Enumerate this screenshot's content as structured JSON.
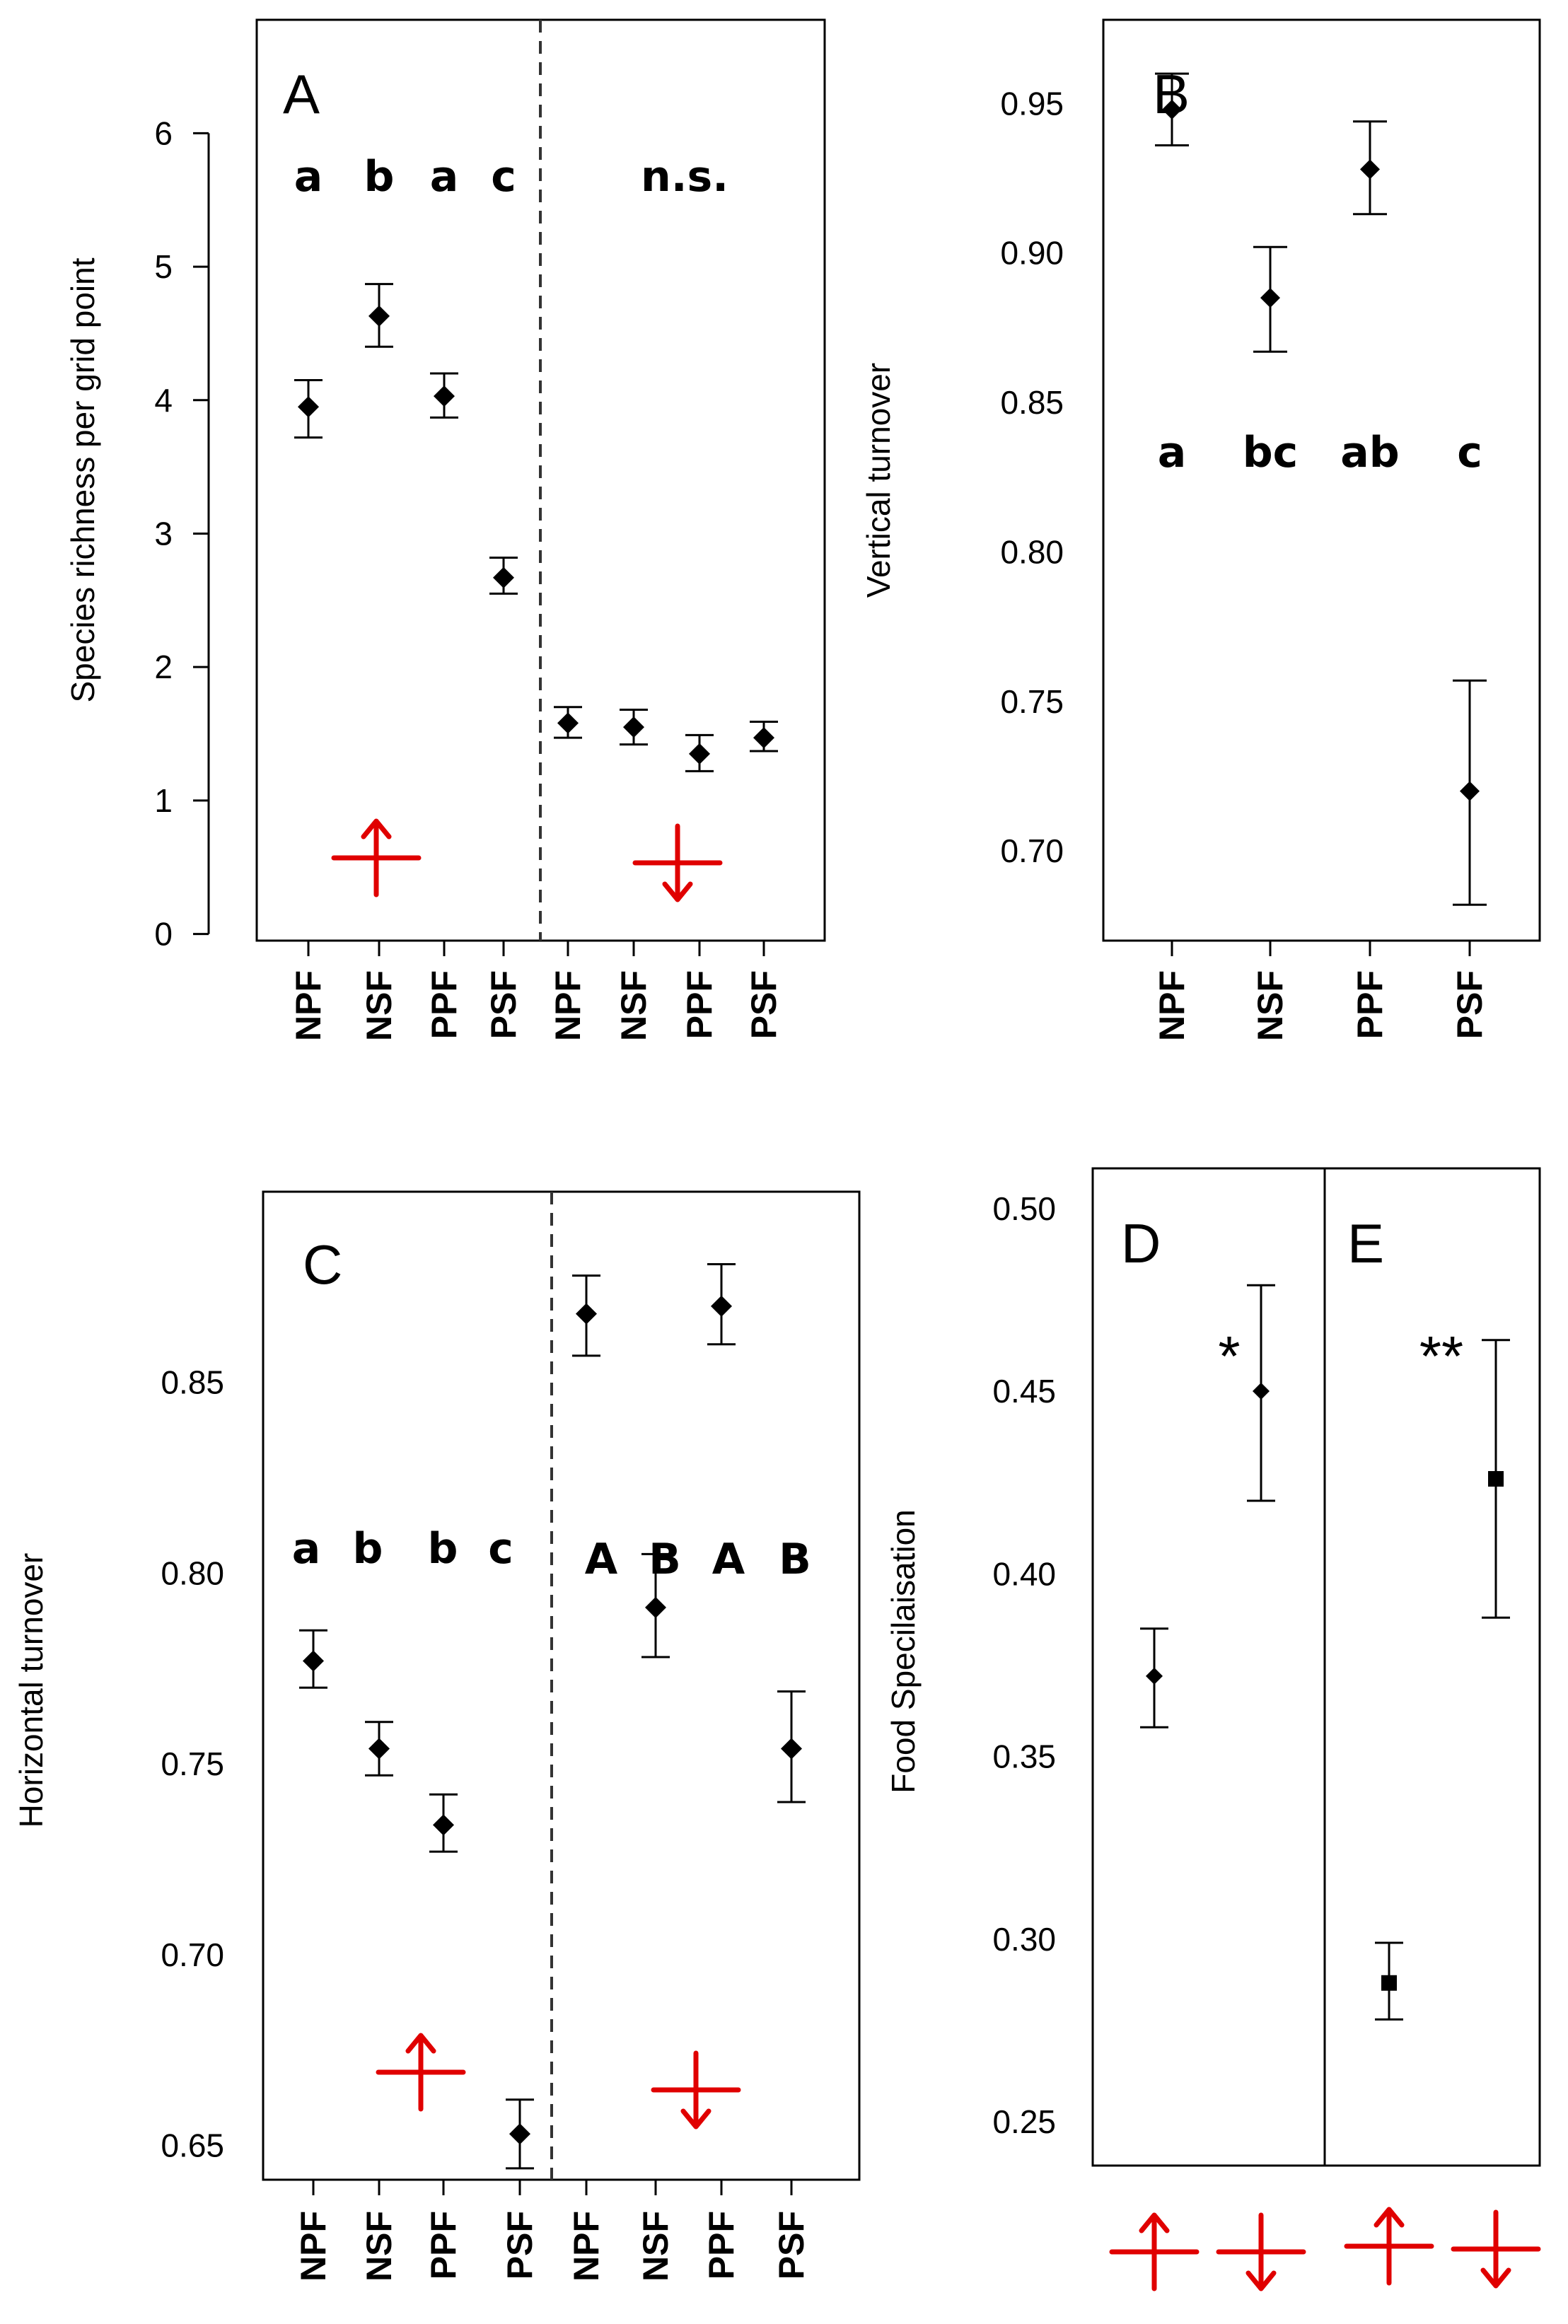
{
  "colors": {
    "ink": "#000000",
    "arrow": "#e00000"
  },
  "chart_data": [
    {
      "panel": "A",
      "type": "scatter",
      "ylabel": "Species richness per grid point",
      "ylim": [
        -0.05,
        6.85
      ],
      "yticks": [
        "0",
        "1",
        "2",
        "3",
        "4",
        "5",
        "6"
      ],
      "yticks_values": [
        0,
        1,
        2,
        3,
        4,
        5,
        6
      ],
      "categories": [
        "NPF",
        "NSF",
        "PPF",
        "PSF",
        "NPF",
        "NSF",
        "PPF",
        "PSF"
      ],
      "points": [
        {
          "value": 3.95,
          "low": 3.72,
          "high": 4.15
        },
        {
          "value": 4.63,
          "low": 4.4,
          "high": 4.87
        },
        {
          "value": 4.03,
          "low": 3.87,
          "high": 4.2
        },
        {
          "value": 2.67,
          "low": 2.55,
          "high": 2.82
        },
        {
          "value": 1.58,
          "low": 1.47,
          "high": 1.7
        },
        {
          "value": 1.55,
          "low": 1.42,
          "high": 1.68
        },
        {
          "value": 1.35,
          "low": 1.22,
          "high": 1.49
        },
        {
          "value": 1.47,
          "low": 1.37,
          "high": 1.59
        }
      ],
      "letters": [
        "a",
        "b",
        "a",
        "c"
      ],
      "group_labels": [
        "n.s."
      ],
      "groups": [
        "up-arrow",
        "down-arrow"
      ],
      "divider": "dashed"
    },
    {
      "panel": "B",
      "type": "scatter",
      "ylabel": "Vertical turnover",
      "ylim": [
        0.67,
        0.978
      ],
      "yticks": [
        "0.70",
        "0.75",
        "0.80",
        "0.85",
        "0.90",
        "0.95"
      ],
      "yticks_values": [
        0.7,
        0.75,
        0.8,
        0.85,
        0.9,
        0.95
      ],
      "categories": [
        "NPF",
        "NSF",
        "PPF",
        "PSF"
      ],
      "points": [
        {
          "value": 0.948,
          "low": 0.936,
          "high": 0.96
        },
        {
          "value": 0.885,
          "low": 0.867,
          "high": 0.902
        },
        {
          "value": 0.928,
          "low": 0.913,
          "high": 0.944
        },
        {
          "value": 0.72,
          "low": 0.682,
          "high": 0.757
        }
      ],
      "letters": [
        "a",
        "bc",
        "ab",
        "c"
      ]
    },
    {
      "panel": "C",
      "type": "scatter",
      "ylabel": "Horizontal turnover",
      "ylim": [
        0.641,
        0.9
      ],
      "yticks": [
        "0.65",
        "0.70",
        "0.75",
        "0.80",
        "0.85"
      ],
      "yticks_values": [
        0.65,
        0.7,
        0.75,
        0.8,
        0.85
      ],
      "categories": [
        "NPF",
        "NSF",
        "PPF",
        "PSF",
        "NPF",
        "NSF",
        "PPF",
        "PSF"
      ],
      "points": [
        {
          "value": 0.777,
          "low": 0.77,
          "high": 0.785
        },
        {
          "value": 0.754,
          "low": 0.747,
          "high": 0.761
        },
        {
          "value": 0.734,
          "low": 0.727,
          "high": 0.742
        },
        {
          "value": 0.653,
          "low": 0.644,
          "high": 0.662
        },
        {
          "value": 0.868,
          "low": 0.857,
          "high": 0.878
        },
        {
          "value": 0.791,
          "low": 0.778,
          "high": 0.805
        },
        {
          "value": 0.87,
          "low": 0.86,
          "high": 0.881
        },
        {
          "value": 0.754,
          "low": 0.74,
          "high": 0.769
        }
      ],
      "letters": [
        "a",
        "b",
        "b",
        "c"
      ],
      "letters_right": [
        "A",
        "B",
        "A",
        "B"
      ],
      "groups": [
        "up-arrow",
        "down-arrow"
      ],
      "divider": "dashed"
    },
    {
      "panel": "D",
      "type": "scatter",
      "ylabel": "Food Specilaisation",
      "ylim": [
        0.238,
        0.511
      ],
      "yticks": [
        "0.25",
        "0.30",
        "0.35",
        "0.40",
        "0.45",
        "0.50"
      ],
      "yticks_values": [
        0.25,
        0.3,
        0.35,
        0.4,
        0.45,
        0.5
      ],
      "groups": [
        "up-arrow",
        "down-arrow"
      ],
      "points": [
        {
          "value": 0.372,
          "low": 0.358,
          "high": 0.385
        },
        {
          "value": 0.45,
          "low": 0.42,
          "high": 0.479
        }
      ],
      "significance": "*"
    },
    {
      "panel": "E",
      "type": "scatter",
      "groups": [
        "up-arrow",
        "down-arrow"
      ],
      "points": [
        {
          "value": 0.288,
          "low": 0.278,
          "high": 0.299
        },
        {
          "value": 0.426,
          "low": 0.388,
          "high": 0.464
        }
      ],
      "significance": "**"
    }
  ]
}
